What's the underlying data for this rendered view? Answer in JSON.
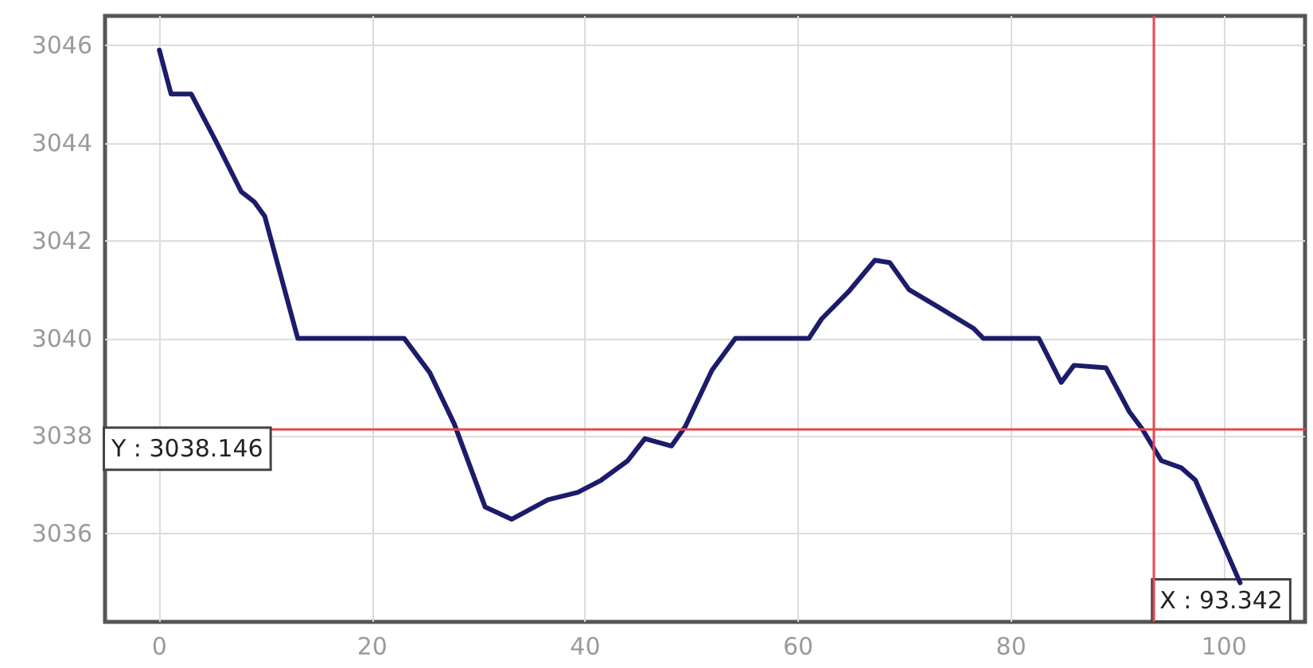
{
  "chart_data": {
    "type": "line",
    "x": [
      0,
      1.1,
      3,
      5.4,
      7.7,
      8.9,
      9.9,
      13,
      23,
      24.2,
      25.4,
      27.7,
      30.6,
      33.1,
      36.5,
      39.3,
      41.5,
      44,
      45.6,
      48.1,
      49.4,
      51.9,
      54.1,
      61,
      62.2,
      64.7,
      67.2,
      68.6,
      70.4,
      73.1,
      76.5,
      77.4,
      82.6,
      84.7,
      85.9,
      88.9,
      91.1,
      92.3,
      94.1,
      96,
      97.3,
      101.5
    ],
    "series": [
      {
        "color": "#1c1c6b",
        "values": [
          3045.9,
          3045,
          3045,
          3044,
          3043,
          3042.8,
          3042.5,
          3040,
          3040,
          3039.65,
          3039.3,
          3038.25,
          3036.55,
          3036.3,
          3036.7,
          3036.85,
          3037.1,
          3037.5,
          3037.95,
          3037.8,
          3038.2,
          3039.35,
          3040,
          3040,
          3040.4,
          3040.95,
          3041.6,
          3041.55,
          3041,
          3040.65,
          3040.2,
          3040,
          3040,
          3039.1,
          3039.45,
          3039.4,
          3038.5,
          3038.15,
          3037.5,
          3037.35,
          3037.1,
          3035
        ]
      }
    ],
    "xlim": [
      -5.1,
      107.6
    ],
    "ylim": [
      3034.2,
      3046.6
    ],
    "xticks": [
      0,
      20,
      40,
      60,
      80,
      100
    ],
    "yticks": [
      3036,
      3038,
      3040,
      3042,
      3044,
      3046
    ],
    "grid": true,
    "marker": "none",
    "line_style": "solid",
    "ref_lines": [
      {
        "axis": "y",
        "value": 3038.146,
        "label": "Y : 3038.146",
        "color": "#e8474c"
      },
      {
        "axis": "x",
        "value": 93.342,
        "label": "X : 93.342",
        "color": "#e8474c"
      }
    ]
  }
}
